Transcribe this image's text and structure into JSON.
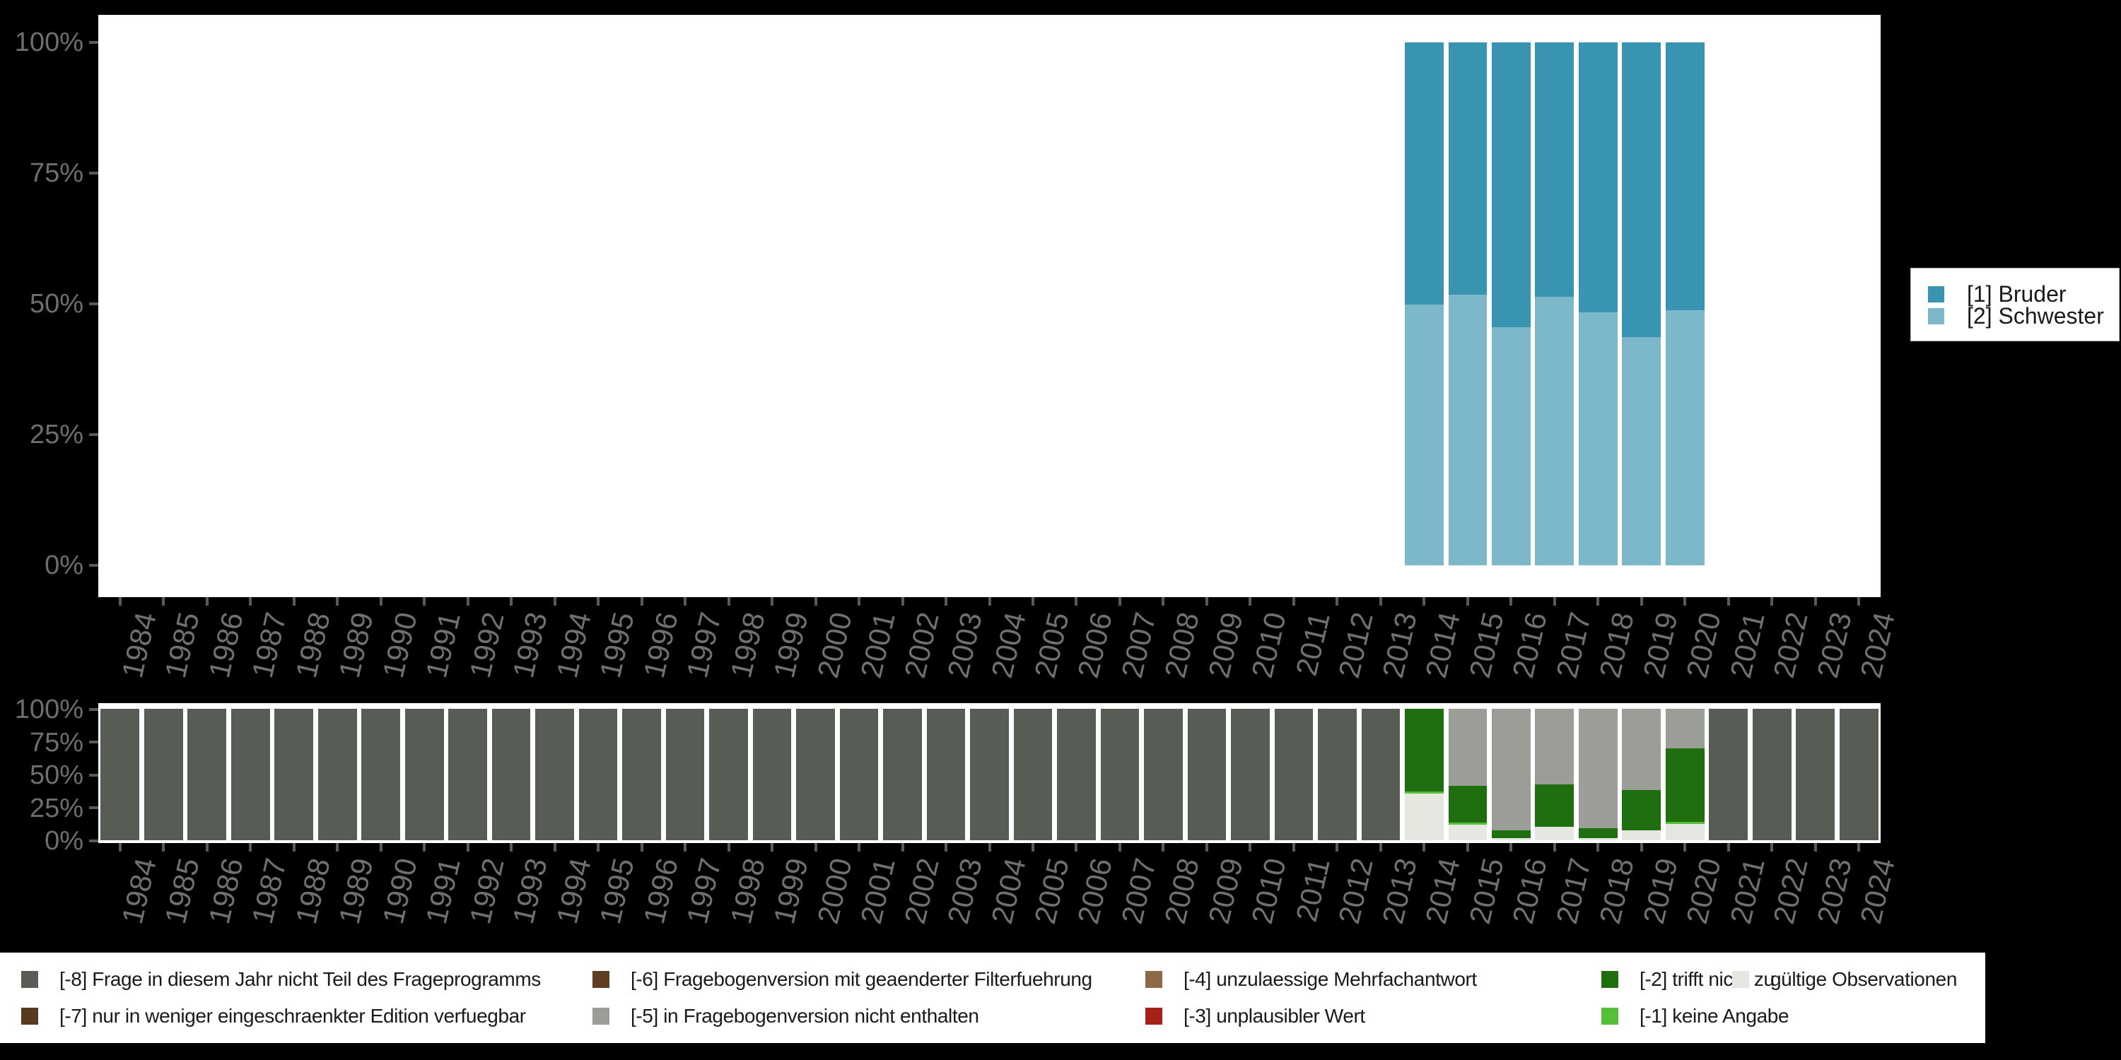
{
  "colors": {
    "bruder": "#3994B1",
    "schwester": "#7DB7CA",
    "-8": "#575D55",
    "-7": "#5A3A1E",
    "-6": "#5E3D20",
    "-5": "#9A9E96",
    "-4": "#8A6A47",
    "-3": "#A62019",
    "-2": "#1F6E0F",
    "-1": "#56BE3A",
    "valid": "#E4E8E0",
    "axis_text": "#6E6E6E",
    "background": "#000000",
    "panel": "#FFFFFF"
  },
  "top_legend": {
    "items": [
      {
        "label": "[1] Bruder",
        "color_key": "bruder"
      },
      {
        "label": "[2] Schwester",
        "color_key": "schwester"
      }
    ]
  },
  "bottom_legend": {
    "items": [
      {
        "key": "-8",
        "label": "[-8] Frage in diesem Jahr nicht Teil des Frageprogramms"
      },
      {
        "key": "-7",
        "label": "[-7] nur in weniger eingeschraenkter Edition verfuegbar"
      },
      {
        "key": "-6",
        "label": "[-6] Fragebogenversion mit geaenderter Filterfuehrung"
      },
      {
        "key": "-5",
        "label": "[-5] in Fragebogenversion nicht enthalten"
      },
      {
        "key": "-4",
        "label": "[-4] unzulaessige Mehrfachantwort"
      },
      {
        "key": "-3",
        "label": "[-3] unplausibler Wert"
      },
      {
        "key": "-2",
        "label": "[-2] trifft nicht zu"
      },
      {
        "key": "-1",
        "label": "[-1] keine Angabe"
      },
      {
        "key": "valid",
        "label": "gültige Observationen"
      }
    ]
  },
  "chart_data": [
    {
      "type": "bar",
      "stacked": true,
      "orientation": "vertical",
      "legend_position": "right",
      "ylim": [
        0,
        100
      ],
      "grid": false,
      "y_ticks": [
        "100%",
        "75%",
        "50%",
        "25%",
        "0%"
      ],
      "categories": [
        "1984",
        "1985",
        "1986",
        "1987",
        "1988",
        "1989",
        "1990",
        "1991",
        "1992",
        "1993",
        "1994",
        "1995",
        "1996",
        "1997",
        "1998",
        "1999",
        "2000",
        "2001",
        "2002",
        "2003",
        "2004",
        "2005",
        "2006",
        "2007",
        "2008",
        "2009",
        "2010",
        "2011",
        "2012",
        "2013",
        "2014",
        "2015",
        "2016",
        "2017",
        "2018",
        "2019",
        "2020",
        "2021",
        "2022",
        "2023",
        "2024"
      ],
      "series": [
        {
          "name": "[1] Bruder",
          "color_key": "bruder",
          "position": "top",
          "values": {
            "2014": 50.2,
            "2015": 48.3,
            "2016": 54.4,
            "2017": 48.6,
            "2018": 51.6,
            "2019": 56.3,
            "2020": 51.2
          }
        },
        {
          "name": "[2] Schwester",
          "color_key": "schwester",
          "position": "bottom",
          "values": {
            "2014": 49.8,
            "2015": 51.7,
            "2016": 45.6,
            "2017": 51.4,
            "2018": 48.4,
            "2019": 43.7,
            "2020": 48.8
          }
        }
      ]
    },
    {
      "type": "bar",
      "stacked": true,
      "orientation": "vertical",
      "legend_position": "bottom",
      "ylim": [
        0,
        100
      ],
      "grid": false,
      "y_ticks": [
        "100%",
        "75%",
        "50%",
        "25%",
        "0%"
      ],
      "categories": [
        "1984",
        "1985",
        "1986",
        "1987",
        "1988",
        "1989",
        "1990",
        "1991",
        "1992",
        "1993",
        "1994",
        "1995",
        "1996",
        "1997",
        "1998",
        "1999",
        "2000",
        "2001",
        "2002",
        "2003",
        "2004",
        "2005",
        "2006",
        "2007",
        "2008",
        "2009",
        "2010",
        "2011",
        "2012",
        "2013",
        "2014",
        "2015",
        "2016",
        "2017",
        "2018",
        "2019",
        "2020",
        "2021",
        "2022",
        "2023",
        "2024"
      ],
      "default_segments": [
        [
          "-8",
          100
        ]
      ],
      "bars": {
        "2014": [
          [
            "-2",
            63.0
          ],
          [
            "-1",
            1.6
          ],
          [
            "valid",
            35.4
          ]
        ],
        "2015": [
          [
            "-5",
            58.6
          ],
          [
            "-2",
            28.0
          ],
          [
            "-1",
            1.6
          ],
          [
            "valid",
            11.8
          ]
        ],
        "2016": [
          [
            "-5",
            92.5
          ],
          [
            "-2",
            5.9
          ],
          [
            "valid",
            1.6
          ]
        ],
        "2017": [
          [
            "-5",
            57.5
          ],
          [
            "-2",
            32.3
          ],
          [
            "valid",
            10.2
          ]
        ],
        "2018": [
          [
            "-5",
            90.9
          ],
          [
            "-2",
            7.5
          ],
          [
            "valid",
            1.6
          ]
        ],
        "2019": [
          [
            "-5",
            61.8
          ],
          [
            "-2",
            30.6
          ],
          [
            "valid",
            7.6
          ]
        ],
        "2020": [
          [
            "-5",
            30.1
          ],
          [
            "-2",
            55.9
          ],
          [
            "-1",
            1.6
          ],
          [
            "valid",
            12.4
          ]
        ],
        "2021": [
          [
            "-8",
            100
          ]
        ],
        "2022": [
          [
            "-8",
            100
          ]
        ],
        "2023": [
          [
            "-8",
            100
          ]
        ],
        "2024": [
          [
            "-8",
            100
          ]
        ]
      }
    }
  ]
}
